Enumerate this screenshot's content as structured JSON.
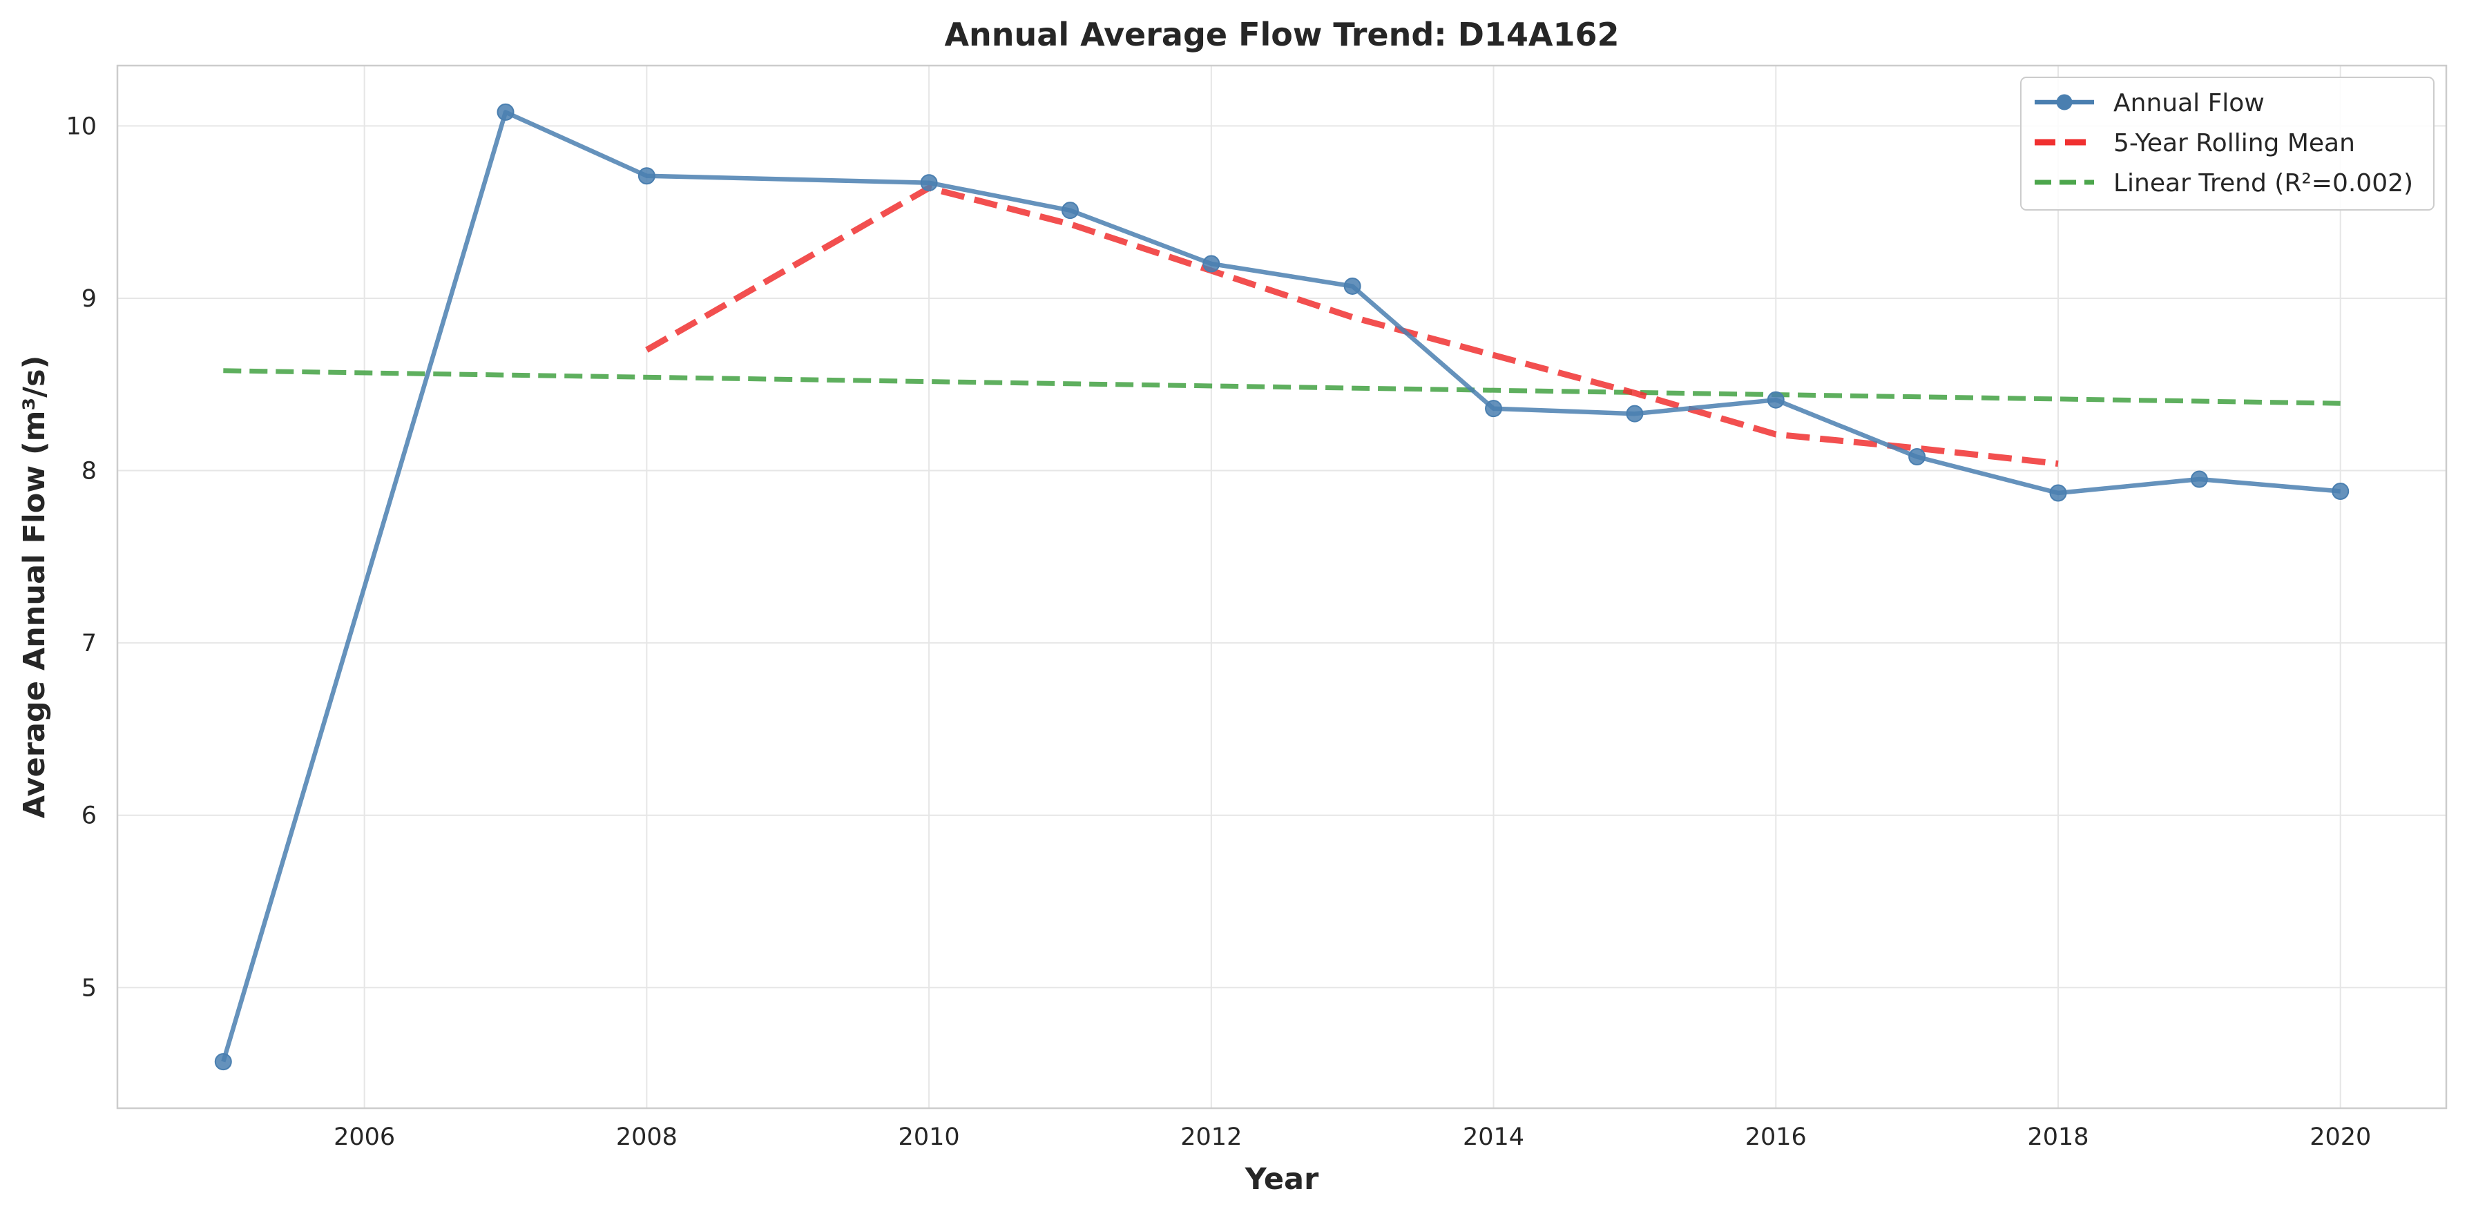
{
  "chart_data": {
    "type": "line",
    "title": "Annual Average Flow Trend: D14A162",
    "xlabel": "Year",
    "ylabel": "Average Annual Flow (m³/s)",
    "xlim": [
      2004.25,
      2020.75
    ],
    "ylim": [
      4.3,
      10.35
    ],
    "x_ticks": [
      2006,
      2008,
      2010,
      2012,
      2014,
      2016,
      2018,
      2020
    ],
    "y_ticks": [
      5,
      6,
      7,
      8,
      9,
      10
    ],
    "grid": true,
    "legend_position": "top-right",
    "series": [
      {
        "name": "Annual Flow",
        "style": "solid-markers",
        "color": "#4a7fb0",
        "x": [
          2005,
          2007,
          2008,
          2010,
          2011,
          2012,
          2013,
          2014,
          2015,
          2016,
          2017,
          2018,
          2019,
          2020
        ],
        "y": [
          4.57,
          10.08,
          9.71,
          9.67,
          9.51,
          9.2,
          9.07,
          8.36,
          8.33,
          8.41,
          8.08,
          7.87,
          7.95,
          7.88
        ]
      },
      {
        "name": "5-Year Rolling Mean",
        "style": "dashed",
        "color": "#f03030",
        "x": [
          2008,
          2010,
          2011,
          2012,
          2013,
          2014,
          2015,
          2016,
          2017,
          2018
        ],
        "y": [
          8.7,
          9.64,
          9.43,
          9.16,
          8.89,
          8.67,
          8.45,
          8.21,
          8.13,
          8.04
        ]
      },
      {
        "name": "Linear Trend (R²=0.002)",
        "style": "dashed",
        "color": "#4ca64c",
        "x": [
          2005,
          2020
        ],
        "y": [
          8.58,
          8.39
        ]
      }
    ]
  }
}
